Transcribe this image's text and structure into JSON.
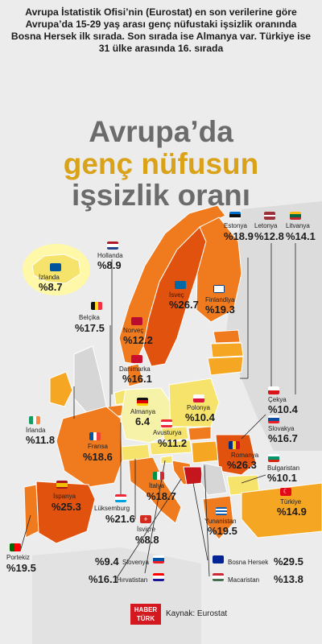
{
  "intro": "Avrupa İstatistik Ofisi’nin (Eurostat) en son verilerine göre Avrupa’da 15-29 yaş arası genç nüfustaki işsizlik oranında Bosna Hersek ilk sırada. Son sırada ise Almanya var. Türkiye ise 31 ülke arasında 16. sırada",
  "title": {
    "line1": "Avrupa’da",
    "line2": "genç nüfusun",
    "line3": "işsizlik oranı"
  },
  "countries": {
    "estonya": {
      "name": "Estonya",
      "value": "%18.9"
    },
    "letonya": {
      "name": "Letonya",
      "value": "%12.8"
    },
    "litvanya": {
      "name": "Litvanya",
      "value": "%14.1"
    },
    "hollanda": {
      "name": "Hollanda",
      "value": "%8.9"
    },
    "izlanda": {
      "name": "İzlanda",
      "value": "%8.7"
    },
    "isvec": {
      "name": "İsveç",
      "value": "%26.7"
    },
    "finlandiya": {
      "name": "Finlandiya",
      "value": "%19.3"
    },
    "belcika": {
      "name": "Belçika",
      "value": "%17.5"
    },
    "norvec": {
      "name": "Norveç",
      "value": "%12.2"
    },
    "danimarka": {
      "name": "Danimarka",
      "value": "%16.1"
    },
    "cekya": {
      "name": "Çekya",
      "value": "%10.4"
    },
    "slovakya": {
      "name": "Slovakya",
      "value": "%16.7"
    },
    "almanya": {
      "name": "Almanya",
      "value": "6.4"
    },
    "polonya": {
      "name": "Polonya",
      "value": "%10.4"
    },
    "irlanda": {
      "name": "İrlanda",
      "value": "%11.8"
    },
    "fransa": {
      "name": "Fransa",
      "value": "%18.6"
    },
    "avusturya": {
      "name": "Avusturya",
      "value": "%11.2"
    },
    "romanya": {
      "name": "Romanya",
      "value": "%26.3"
    },
    "bulgaristan": {
      "name": "Bulgaristan",
      "value": "%10.1"
    },
    "ispanya": {
      "name": "İspanya",
      "value": "%25.3"
    },
    "italya": {
      "name": "İtalya",
      "value": "%18.7"
    },
    "luksemburg": {
      "name": "Lüksemburg",
      "value": "%21.6"
    },
    "isvicre": {
      "name": "İsviçre",
      "value": "%8.8"
    },
    "yunanistan": {
      "name": "Yunanistan",
      "value": "%19.5"
    },
    "turkiye": {
      "name": "Türkiye",
      "value": "%14.9"
    },
    "portekiz": {
      "name": "Portekiz",
      "value": "%19.5"
    },
    "slovenya": {
      "name": "Slovenya",
      "value": "%9.4"
    },
    "hirvatistan": {
      "name": "Hırvatistan",
      "value": "%16.1"
    },
    "bosna": {
      "name": "Bosna Hersek",
      "value": "%29.5"
    },
    "macaristan": {
      "name": "Macaristan",
      "value": "%13.8"
    }
  },
  "footer": {
    "logo_line1": "HABER",
    "logo_line2": "TÜRK",
    "source": "Kaynak: Eurostat"
  },
  "colors": {
    "title_gray": "#6b6b6b",
    "title_gold": "#d9a219",
    "high": "#e2520f",
    "mid": "#f07a1e",
    "low": "#f5a623",
    "lowest": "#f6e36c"
  }
}
